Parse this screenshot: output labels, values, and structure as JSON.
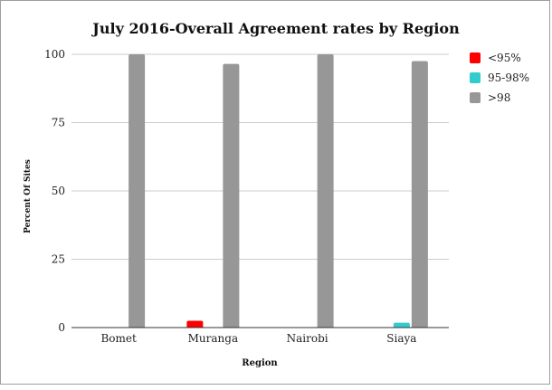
{
  "chart_data": {
    "type": "bar",
    "title": "July 2016-Overall Agreement rates by Region",
    "xlabel": "Region",
    "ylabel": "Percent Of Sites",
    "categories": [
      "Bomet",
      "Muranga",
      "Nairobi",
      "Siaya"
    ],
    "series": [
      {
        "name": "<95%",
        "color": "#ff0000",
        "values": [
          0,
          2.5,
          0,
          0
        ]
      },
      {
        "name": "95-98%",
        "color": "#33cccc",
        "values": [
          0,
          0,
          0,
          1.8
        ]
      },
      {
        "name": ">98",
        "color": "#979797",
        "values": [
          100,
          96.5,
          100,
          97.5
        ]
      }
    ],
    "ylim": [
      0,
      100
    ],
    "yticks": [
      0,
      25,
      50,
      75,
      100
    ],
    "grid": true,
    "legend": "right"
  }
}
